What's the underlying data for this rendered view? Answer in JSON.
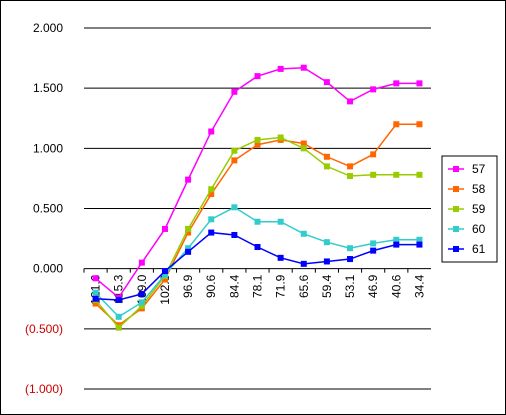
{
  "chart_data": {
    "type": "line",
    "title": "",
    "xlabel": "",
    "ylabel": "",
    "ylim": [
      -1.0,
      2.0
    ],
    "y_ticks": [
      "2.000",
      "1.500",
      "1.000",
      "0.500",
      "0.000",
      "(0.500)",
      "(1.000)"
    ],
    "y_tick_values": [
      2.0,
      1.5,
      1.0,
      0.5,
      0.0,
      -0.5,
      -1.0
    ],
    "negative_tick_color": "#cc0000",
    "categories": [
      "121.6",
      "115.3",
      "109.0",
      "102.8",
      "96.9",
      "90.6",
      "84.4",
      "78.1",
      "71.9",
      "65.6",
      "59.4",
      "53.1",
      "46.9",
      "40.6",
      "34.4"
    ],
    "grid": "horizontal",
    "legend_position": "right",
    "series": [
      {
        "name": "57",
        "color": "#ff00ff",
        "values": [
          -0.08,
          -0.24,
          0.05,
          0.33,
          0.74,
          1.14,
          1.47,
          1.6,
          1.66,
          1.67,
          1.55,
          1.39,
          1.49,
          1.54,
          1.54
        ]
      },
      {
        "name": "58",
        "color": "#ff6600",
        "values": [
          -0.29,
          -0.47,
          -0.33,
          -0.09,
          0.3,
          0.62,
          0.9,
          1.03,
          1.07,
          1.04,
          0.93,
          0.85,
          0.95,
          1.2,
          1.2
        ]
      },
      {
        "name": "59",
        "color": "#99cc00",
        "values": [
          -0.26,
          -0.49,
          -0.31,
          -0.06,
          0.33,
          0.66,
          0.98,
          1.07,
          1.09,
          1.0,
          0.85,
          0.77,
          0.78,
          0.78,
          0.78
        ]
      },
      {
        "name": "60",
        "color": "#33cccc",
        "values": [
          -0.2,
          -0.4,
          -0.28,
          -0.05,
          0.17,
          0.41,
          0.51,
          0.39,
          0.39,
          0.29,
          0.22,
          0.17,
          0.21,
          0.24,
          0.24
        ]
      },
      {
        "name": "61",
        "color": "#0000ff",
        "values": [
          -0.25,
          -0.26,
          -0.21,
          -0.02,
          0.14,
          0.3,
          0.28,
          0.18,
          0.09,
          0.04,
          0.06,
          0.08,
          0.15,
          0.2,
          0.2
        ]
      }
    ]
  }
}
